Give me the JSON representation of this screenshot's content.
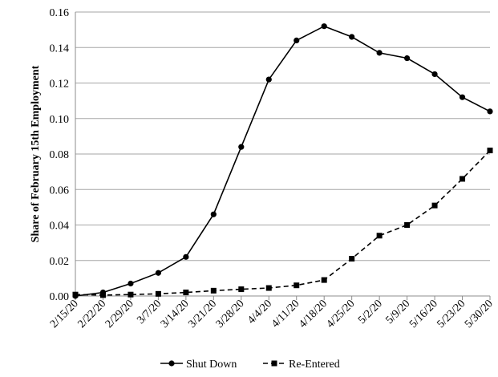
{
  "chart_data": {
    "type": "line",
    "title": "",
    "xlabel": "",
    "ylabel": "Share of February 15th Employment",
    "categories": [
      "2/15/20",
      "2/22/20",
      "2/29/20",
      "3/7/20",
      "3/14/20",
      "3/21/20",
      "3/28/20",
      "4/4/20",
      "4/11/20",
      "4/18/20",
      "4/25/20",
      "5/2/20",
      "5/9/20",
      "5/16/20",
      "5/23/20",
      "5/30/20"
    ],
    "ylim": [
      0,
      0.16
    ],
    "yticks": [
      "0.00",
      "0.02",
      "0.04",
      "0.06",
      "0.08",
      "0.10",
      "0.12",
      "0.14",
      "0.16"
    ],
    "grid": true,
    "legend_position": "bottom",
    "series": [
      {
        "name": "Shut Down",
        "marker": "circle",
        "line_style": "solid",
        "color": "#000000",
        "values": [
          0.0,
          0.002,
          0.007,
          0.013,
          0.022,
          0.046,
          0.084,
          0.122,
          0.144,
          0.152,
          0.146,
          0.137,
          0.134,
          0.125,
          0.112,
          0.104
        ]
      },
      {
        "name": "Re-Entered",
        "marker": "square",
        "line_style": "dashed",
        "color": "#000000",
        "values": [
          0.0008,
          0.0005,
          0.0008,
          0.0012,
          0.002,
          0.003,
          0.0038,
          0.0045,
          0.006,
          0.009,
          0.021,
          0.034,
          0.04,
          0.051,
          0.066,
          0.082
        ]
      }
    ]
  }
}
